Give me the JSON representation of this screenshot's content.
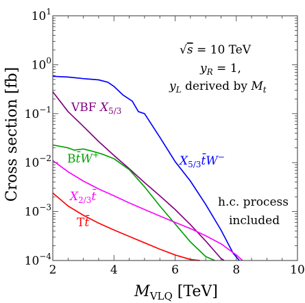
{
  "chart_data": {
    "type": "line",
    "xlabel": "M_VLQ [TeV]",
    "xlabel_main": "M",
    "xlabel_sub": "VLQ",
    "xlabel_unit": " [TeV]",
    "ylabel": "Cross section [fb]",
    "xlim": [
      2,
      10
    ],
    "ylim_log10": [
      -4,
      1
    ],
    "yscale": "log",
    "x_ticks": [
      "2",
      "4",
      "6",
      "8",
      "10"
    ],
    "x_tick_values": [
      2,
      4,
      6,
      8,
      10
    ],
    "y_tick_exponents": [
      -4,
      -3,
      -2,
      -1,
      0,
      1
    ],
    "y_tick_base": "10",
    "y_tick_exp_labels": [
      "−4",
      "−3",
      "−2",
      "−1",
      "0",
      "1"
    ],
    "annotations": {
      "energy_sqrt": "√",
      "energy_s": "s",
      "energy_value": " = 10 TeV",
      "yr": "y",
      "yr_sub": "R",
      "yr_value": " = 1,",
      "yl": "y",
      "yl_sub": "L",
      "yl_text": " derived by ",
      "yl_m": "M",
      "yl_m_sub": "t",
      "hc_line1": "h.c. process",
      "hc_line2": "included"
    },
    "series": [
      {
        "label_main": "X",
        "label_sub": "5/3",
        "label_rest": "t̄W",
        "label_sup": "−",
        "color": "#0000ff",
        "x": [
          2.0,
          2.5,
          3.0,
          3.5,
          3.8,
          4.0,
          4.3,
          4.6,
          4.8,
          5.0,
          5.5,
          6.0,
          6.5,
          7.0,
          7.5,
          7.9,
          8.1
        ],
        "y": [
          0.58,
          0.56,
          0.52,
          0.49,
          0.44,
          0.36,
          0.24,
          0.18,
          0.11,
          0.1,
          0.033,
          0.0105,
          0.0042,
          0.0014,
          0.00042,
          0.00014,
          0.0001
        ]
      },
      {
        "label_pre": "VBF ",
        "label_main": "X",
        "label_sub": "5/3",
        "color": "#800080",
        "x": [
          2.0,
          2.5,
          3.0,
          3.5,
          4.0,
          4.5,
          5.0,
          5.5,
          6.0,
          6.5,
          7.0,
          7.5,
          7.6
        ],
        "y": [
          0.28,
          0.11,
          0.055,
          0.027,
          0.014,
          0.0075,
          0.0039,
          0.0021,
          0.0011,
          0.00054,
          0.00025,
          0.00011,
          0.0001
        ]
      },
      {
        "label_main": "B",
        "label_rest": "t̄W",
        "label_sup": "+",
        "color": "#00a000",
        "x": [
          2.0,
          2.5,
          2.7,
          3.0,
          3.3,
          3.6,
          4.0,
          4.5,
          5.0,
          5.5,
          6.0,
          6.5,
          7.0,
          7.3
        ],
        "y": [
          0.023,
          0.02,
          0.018,
          0.019,
          0.017,
          0.015,
          0.012,
          0.0072,
          0.0032,
          0.0013,
          0.00056,
          0.00024,
          0.00012,
          0.0001
        ]
      },
      {
        "label_main": "X",
        "label_sub": "2/3",
        "label_rest": "t̄",
        "color": "#ff00ff",
        "x": [
          2.0,
          2.5,
          3.0,
          3.5,
          4.0,
          4.5,
          5.0,
          5.5,
          6.0,
          6.5,
          7.0,
          7.5,
          8.0,
          8.2
        ],
        "y": [
          0.011,
          0.0065,
          0.0042,
          0.0029,
          0.0021,
          0.0015,
          0.0011,
          0.00081,
          0.0006,
          0.00045,
          0.00032,
          0.00022,
          0.00013,
          0.0001
        ]
      },
      {
        "label_main": "T",
        "label_rest": "t̄",
        "color": "#ff0000",
        "x": [
          2.0,
          2.5,
          3.0,
          3.5,
          4.0,
          4.5,
          5.0,
          5.5,
          6.0,
          6.5,
          6.8
        ],
        "y": [
          0.0024,
          0.0013,
          0.00084,
          0.00058,
          0.00042,
          0.00031,
          0.00023,
          0.00017,
          0.00013,
          0.000105,
          0.0001
        ]
      }
    ]
  }
}
